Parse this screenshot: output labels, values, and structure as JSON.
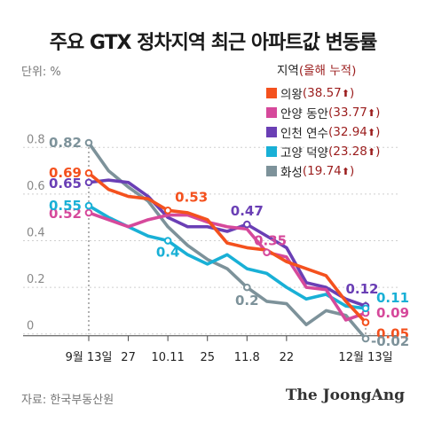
{
  "title": "주요 GTX 정차지역 최근 아파트값 변동률",
  "unit_label": "단위: %",
  "source": "자료: 한국부동산원",
  "brand": "The JoongAng",
  "legend": {
    "title": "지역",
    "subtitle": "(올해 누적)",
    "items": [
      {
        "name": "의왕",
        "pct": "38.57",
        "arrow": "⬆",
        "color": "#f4511e"
      },
      {
        "name": "안양 동안",
        "pct": "33.77",
        "arrow": "⬆",
        "color": "#d6499b"
      },
      {
        "name": "인천 연수",
        "pct": "32.94",
        "arrow": "⬆",
        "color": "#6a3fb5"
      },
      {
        "name": "고양 덕양",
        "pct": "23.28",
        "arrow": "⬆",
        "color": "#19b0d6"
      },
      {
        "name": "화성",
        "pct": "19.74",
        "arrow": "⬆",
        "color": "#7d929a"
      }
    ]
  },
  "chart_data": {
    "type": "line",
    "y_ticks": [
      "0",
      "0.2",
      "0.4",
      "0.6",
      "0.8"
    ],
    "ylim": [
      -0.02,
      0.9
    ],
    "x_labels": [
      "9월 13일",
      "27",
      "10.11",
      "25",
      "11.8",
      "22",
      "12월 13일"
    ],
    "grid": "horizontal dashed",
    "series": [
      {
        "name": "의왕",
        "color": "#f4511e",
        "values": [
          0.69,
          0.62,
          0.59,
          0.58,
          0.53,
          0.52,
          0.49,
          0.39,
          0.37,
          0.36,
          0.31,
          0.28,
          0.25,
          0.14,
          0.05
        ],
        "labels": [
          [
            0,
            "0.69"
          ],
          [
            4,
            "0.53"
          ],
          [
            14,
            "0.05"
          ]
        ]
      },
      {
        "name": "안양 동안",
        "color": "#d6499b",
        "values": [
          0.52,
          0.49,
          0.46,
          0.49,
          0.51,
          0.51,
          0.48,
          0.46,
          0.45,
          0.35,
          0.33,
          0.2,
          0.19,
          0.06,
          0.09
        ],
        "labels": [
          [
            0,
            "0.52"
          ],
          [
            9,
            "0.35"
          ],
          [
            14,
            "0.09"
          ]
        ]
      },
      {
        "name": "인천 연수",
        "color": "#6a3fb5",
        "values": [
          0.65,
          0.66,
          0.65,
          0.59,
          0.5,
          0.46,
          0.46,
          0.44,
          0.47,
          0.42,
          0.37,
          0.22,
          0.2,
          0.15,
          0.12
        ],
        "labels": [
          [
            0,
            "0.65"
          ],
          [
            8,
            "0.47"
          ],
          [
            14,
            "0.12"
          ]
        ]
      },
      {
        "name": "고양 덕양",
        "color": "#19b0d6",
        "values": [
          0.55,
          0.5,
          0.46,
          0.42,
          0.4,
          0.34,
          0.3,
          0.34,
          0.28,
          0.26,
          0.2,
          0.15,
          0.17,
          0.12,
          0.11
        ],
        "labels": [
          [
            0,
            "0.55"
          ],
          [
            4,
            "0.4"
          ],
          [
            14,
            "0.11"
          ]
        ]
      },
      {
        "name": "화성",
        "color": "#7d929a",
        "values": [
          0.82,
          0.7,
          0.63,
          0.57,
          0.46,
          0.38,
          0.32,
          0.28,
          0.2,
          0.14,
          0.13,
          0.04,
          0.1,
          0.08,
          -0.02
        ],
        "labels": [
          [
            0,
            "0.82"
          ],
          [
            8,
            "0.2"
          ],
          [
            14,
            "-0.02"
          ]
        ]
      }
    ]
  }
}
